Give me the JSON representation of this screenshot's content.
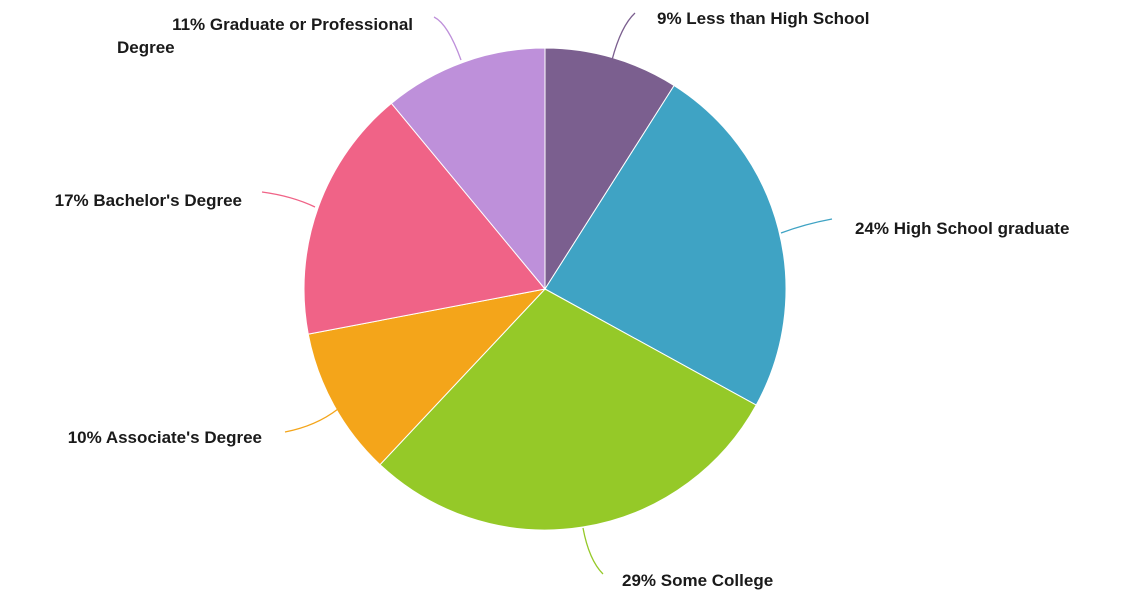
{
  "chart_data": {
    "type": "pie",
    "slices": [
      {
        "label": "Less than High School",
        "value": 9,
        "display": "9% Less than High School",
        "color": "#7b5f8f"
      },
      {
        "label": "High School graduate",
        "value": 24,
        "display": "24% High School graduate",
        "color": "#3fa3c4"
      },
      {
        "label": "Some College",
        "value": 29,
        "display": "29% Some College",
        "color": "#95c928"
      },
      {
        "label": "Associate's Degree",
        "value": 10,
        "display": "10% Associate's Degree",
        "color": "#f4a51a"
      },
      {
        "label": "Bachelor's Degree",
        "value": 17,
        "display": "17% Bachelor's Degree",
        "color": "#f06387"
      },
      {
        "label": "Graduate or Professional Degree",
        "value": 11,
        "display_lines": [
          "11% Graduate or Professional",
          "Degree"
        ],
        "color": "#be90da"
      }
    ],
    "start_angle": "top",
    "direction": "clockwise",
    "legend": "none"
  }
}
